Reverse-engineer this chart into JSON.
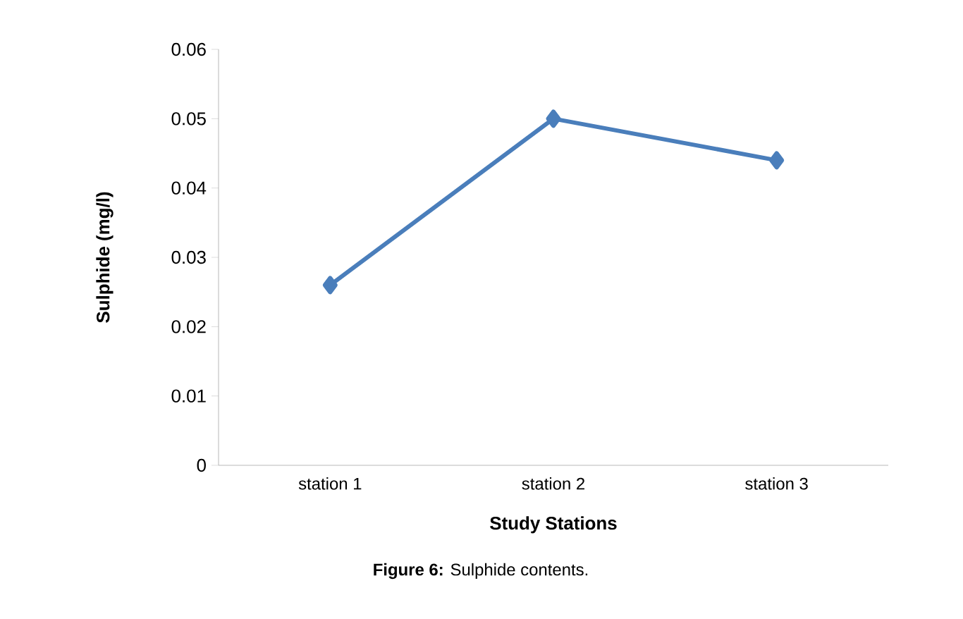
{
  "chart_data": {
    "type": "line",
    "xlabel": "Study Stations",
    "ylabel": "Sulphide (mg/l)",
    "categories": [
      "station 1",
      "station 2",
      "station 3"
    ],
    "series": [
      {
        "color": "#4a7ebb",
        "values": [
          0.026,
          0.05,
          0.044
        ]
      }
    ],
    "ylim": [
      0,
      0.06
    ],
    "yticks": [
      0,
      0.01,
      0.02,
      0.03,
      0.04,
      0.05,
      0.06
    ],
    "marker": "diamond",
    "line_style": "solid",
    "grid": false,
    "annotations": [
      "**Figure 6:**  Sulphide contents."
    ]
  }
}
